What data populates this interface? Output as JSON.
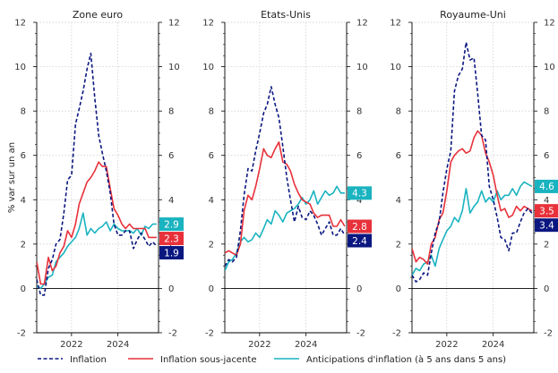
{
  "colors": {
    "inflation": "#0b1780",
    "underlying": "#e8313a",
    "expectations": "#1ab3c0",
    "zero_line": "#000000",
    "grid": "#c8c8c8"
  },
  "chart_data": [
    {
      "type": "line",
      "title": "Zone euro",
      "ylabel": "% var sur un an",
      "ylim": [
        -2,
        12
      ],
      "yticks": [
        -2,
        0,
        2,
        4,
        6,
        8,
        10,
        12
      ],
      "xlim": [
        2020.5,
        2025.75
      ],
      "xticks": [
        2022,
        2024
      ],
      "grid": true,
      "series": [
        {
          "name": "Inflation",
          "x": [
            2020.5,
            2020.67,
            2020.83,
            2021.0,
            2021.17,
            2021.33,
            2021.5,
            2021.67,
            2021.83,
            2022.0,
            2022.17,
            2022.33,
            2022.5,
            2022.67,
            2022.83,
            2023.0,
            2023.17,
            2023.33,
            2023.5,
            2023.67,
            2023.83,
            2024.0,
            2024.17,
            2024.33,
            2024.5,
            2024.67,
            2024.83,
            2025.0,
            2025.17,
            2025.33,
            2025.5,
            2025.67
          ],
          "values": [
            0.4,
            -0.3,
            -0.3,
            0.9,
            1.3,
            2.0,
            2.2,
            3.4,
            4.9,
            5.1,
            7.4,
            8.1,
            8.9,
            9.9,
            10.6,
            8.6,
            6.9,
            6.1,
            5.3,
            4.3,
            2.9,
            2.4,
            2.4,
            2.6,
            2.6,
            1.8,
            2.2,
            2.5,
            2.2,
            1.9,
            2.1,
            1.9
          ]
        },
        {
          "name": "Inflation sous-jacente",
          "x": [
            2020.5,
            2020.67,
            2020.83,
            2021.0,
            2021.17,
            2021.33,
            2021.5,
            2021.67,
            2021.83,
            2022.0,
            2022.17,
            2022.33,
            2022.5,
            2022.67,
            2022.83,
            2023.0,
            2023.17,
            2023.33,
            2023.5,
            2023.67,
            2023.83,
            2024.0,
            2024.17,
            2024.33,
            2024.5,
            2024.67,
            2024.83,
            2025.0,
            2025.17,
            2025.33,
            2025.5,
            2025.67
          ],
          "values": [
            1.2,
            0.2,
            0.2,
            1.4,
            0.8,
            1.0,
            1.6,
            1.9,
            2.6,
            2.3,
            2.9,
            3.8,
            4.3,
            4.8,
            5.0,
            5.3,
            5.7,
            5.5,
            5.5,
            4.5,
            3.6,
            3.3,
            2.9,
            2.7,
            2.9,
            2.7,
            2.7,
            2.7,
            2.7,
            2.3,
            2.3,
            2.3
          ]
        },
        {
          "name": "Anticipations d'inflation (à 5 ans dans 5 ans)",
          "x": [
            2020.5,
            2020.67,
            2020.83,
            2021.0,
            2021.17,
            2021.33,
            2021.5,
            2021.67,
            2021.83,
            2022.0,
            2022.17,
            2022.33,
            2022.5,
            2022.67,
            2022.83,
            2023.0,
            2023.17,
            2023.33,
            2023.5,
            2023.67,
            2023.83,
            2024.0,
            2024.17,
            2024.33,
            2024.5,
            2024.67,
            2024.83,
            2025.0,
            2025.17,
            2025.33,
            2025.5,
            2025.67
          ],
          "values": [
            0.1,
            0.0,
            0.2,
            0.5,
            0.6,
            1.2,
            1.4,
            1.6,
            1.9,
            2.1,
            2.3,
            2.7,
            3.4,
            2.4,
            2.7,
            2.5,
            2.7,
            2.8,
            3.0,
            2.6,
            2.9,
            2.7,
            2.6,
            2.6,
            2.6,
            2.5,
            2.7,
            2.4,
            2.8,
            2.7,
            2.9,
            2.9
          ]
        }
      ],
      "end_labels": {
        "inflation": "1.9",
        "underlying": "2.3",
        "expectations": "2.9"
      }
    },
    {
      "type": "line",
      "title": "Etats-Unis",
      "ylim": [
        -2,
        12
      ],
      "yticks": [
        -2,
        0,
        2,
        4,
        6,
        8,
        10,
        12
      ],
      "xlim": [
        2020.5,
        2025.75
      ],
      "xticks": [
        2022,
        2024
      ],
      "grid": true,
      "series": [
        {
          "name": "Inflation",
          "x": [
            2020.5,
            2020.67,
            2020.83,
            2021.0,
            2021.17,
            2021.33,
            2021.5,
            2021.67,
            2021.83,
            2022.0,
            2022.17,
            2022.33,
            2022.5,
            2022.67,
            2022.83,
            2023.0,
            2023.17,
            2023.33,
            2023.5,
            2023.67,
            2023.83,
            2024.0,
            2024.17,
            2024.33,
            2024.5,
            2024.67,
            2024.83,
            2025.0,
            2025.17,
            2025.33,
            2025.5,
            2025.67
          ],
          "values": [
            1.0,
            1.3,
            1.2,
            1.4,
            2.6,
            4.2,
            5.4,
            5.3,
            6.2,
            7.0,
            7.9,
            8.3,
            9.1,
            8.3,
            7.7,
            6.4,
            5.0,
            4.0,
            3.0,
            3.7,
            3.2,
            3.1,
            3.5,
            3.3,
            2.9,
            2.4,
            2.7,
            3.0,
            2.4,
            2.4,
            2.7,
            2.4
          ]
        },
        {
          "name": "Inflation sous-jacente",
          "x": [
            2020.5,
            2020.67,
            2020.83,
            2021.0,
            2021.17,
            2021.33,
            2021.5,
            2021.67,
            2021.83,
            2022.0,
            2022.17,
            2022.33,
            2022.5,
            2022.67,
            2022.83,
            2023.0,
            2023.17,
            2023.33,
            2023.5,
            2023.67,
            2023.83,
            2024.0,
            2024.17,
            2024.33,
            2024.5,
            2024.67,
            2024.83,
            2025.0,
            2025.17,
            2025.33,
            2025.5,
            2025.67
          ],
          "values": [
            1.6,
            1.7,
            1.6,
            1.5,
            2.0,
            3.5,
            4.2,
            4.0,
            4.6,
            5.4,
            6.3,
            6.0,
            5.9,
            6.3,
            6.6,
            5.7,
            5.6,
            5.3,
            4.7,
            4.3,
            4.0,
            3.9,
            3.8,
            3.4,
            3.2,
            3.3,
            3.3,
            3.3,
            2.8,
            2.8,
            3.1,
            2.8
          ]
        },
        {
          "name": "Anticipations d'inflation (à 5 ans dans 5 ans)",
          "x": [
            2020.5,
            2020.67,
            2020.83,
            2021.0,
            2021.17,
            2021.33,
            2021.5,
            2021.67,
            2021.83,
            2022.0,
            2022.17,
            2022.33,
            2022.5,
            2022.67,
            2022.83,
            2023.0,
            2023.17,
            2023.33,
            2023.5,
            2023.67,
            2023.83,
            2024.0,
            2024.17,
            2024.33,
            2024.5,
            2024.67,
            2024.83,
            2025.0,
            2025.17,
            2025.33,
            2025.5,
            2025.67
          ],
          "values": [
            0.8,
            1.2,
            1.3,
            1.6,
            2.1,
            2.3,
            2.1,
            2.2,
            2.5,
            2.3,
            2.7,
            3.1,
            2.9,
            3.5,
            3.3,
            3.0,
            3.4,
            3.5,
            3.6,
            3.8,
            4.1,
            3.8,
            4.0,
            4.4,
            3.8,
            4.1,
            4.4,
            4.2,
            4.3,
            4.6,
            4.3,
            4.3
          ]
        }
      ],
      "end_labels": {
        "inflation": "2.4",
        "underlying": "2.8",
        "expectations": "4.3"
      }
    },
    {
      "type": "line",
      "title": "Royaume-Uni",
      "ylim": [
        -2,
        12
      ],
      "yticks": [
        -2,
        0,
        2,
        4,
        6,
        8,
        10,
        12
      ],
      "xlim": [
        2020.5,
        2025.75
      ],
      "xticks": [
        2022,
        2024
      ],
      "grid": true,
      "series": [
        {
          "name": "Inflation",
          "x": [
            2020.5,
            2020.67,
            2020.83,
            2021.0,
            2021.17,
            2021.33,
            2021.5,
            2021.67,
            2021.83,
            2022.0,
            2022.17,
            2022.33,
            2022.5,
            2022.67,
            2022.83,
            2023.0,
            2023.17,
            2023.33,
            2023.5,
            2023.67,
            2023.83,
            2024.0,
            2024.17,
            2024.33,
            2024.5,
            2024.67,
            2024.83,
            2025.0,
            2025.17,
            2025.33,
            2025.5,
            2025.67
          ],
          "values": [
            0.6,
            0.3,
            0.4,
            0.7,
            0.6,
            1.6,
            2.5,
            3.0,
            4.3,
            5.4,
            6.2,
            8.9,
            9.6,
            9.9,
            11.1,
            10.3,
            10.4,
            8.8,
            6.9,
            6.7,
            4.6,
            4.0,
            3.2,
            2.3,
            2.2,
            1.7,
            2.5,
            2.5,
            3.0,
            3.4,
            3.6,
            3.4
          ]
        },
        {
          "name": "Inflation sous-jacente",
          "x": [
            2020.5,
            2020.67,
            2020.83,
            2021.0,
            2021.17,
            2021.33,
            2021.5,
            2021.67,
            2021.83,
            2022.0,
            2022.17,
            2022.33,
            2022.5,
            2022.67,
            2022.83,
            2023.0,
            2023.17,
            2023.33,
            2023.5,
            2023.67,
            2023.83,
            2024.0,
            2024.17,
            2024.33,
            2024.5,
            2024.67,
            2024.83,
            2025.0,
            2025.17,
            2025.33,
            2025.5,
            2025.67
          ],
          "values": [
            1.8,
            1.2,
            1.4,
            1.3,
            1.1,
            2.0,
            2.3,
            3.1,
            3.4,
            4.4,
            5.7,
            6.0,
            6.2,
            6.3,
            6.1,
            6.2,
            6.8,
            7.1,
            6.9,
            6.1,
            5.7,
            5.1,
            4.2,
            3.5,
            3.6,
            3.2,
            3.3,
            3.7,
            3.5,
            3.7,
            3.6,
            3.5
          ]
        },
        {
          "name": "Anticipations d'inflation (à 5 ans dans 5 ans)",
          "x": [
            2020.5,
            2020.67,
            2020.83,
            2021.0,
            2021.17,
            2021.33,
            2021.5,
            2021.67,
            2021.83,
            2022.0,
            2022.17,
            2022.33,
            2022.5,
            2022.67,
            2022.83,
            2023.0,
            2023.17,
            2023.33,
            2023.5,
            2023.67,
            2023.83,
            2024.0,
            2024.17,
            2024.33,
            2024.5,
            2024.67,
            2024.83,
            2025.0,
            2025.17,
            2025.33,
            2025.5,
            2025.67
          ],
          "values": [
            0.6,
            0.9,
            0.8,
            1.1,
            1.2,
            1.5,
            1.0,
            1.8,
            2.2,
            2.6,
            2.8,
            3.2,
            3.0,
            3.5,
            4.5,
            3.4,
            3.7,
            3.9,
            4.4,
            3.9,
            4.1,
            3.9,
            4.4,
            4.0,
            4.2,
            4.2,
            4.5,
            4.2,
            4.6,
            4.8,
            4.7,
            4.6
          ]
        }
      ],
      "end_labels": {
        "inflation": "3.4",
        "underlying": "3.5",
        "expectations": "4.6"
      }
    }
  ],
  "legend": [
    {
      "key": "inflation",
      "label": "Inflation"
    },
    {
      "key": "underlying",
      "label": "Inflation sous-jacente"
    },
    {
      "key": "expectations",
      "label": "Anticipations d'inflation (à 5 ans dans 5 ans)"
    }
  ]
}
